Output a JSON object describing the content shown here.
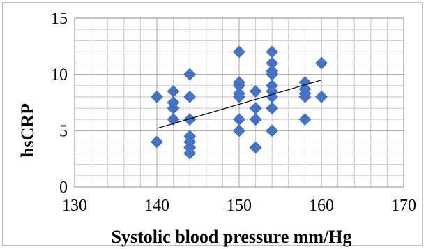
{
  "chart_data": {
    "type": "scatter",
    "title": "",
    "xlabel": "Systolic blood pressure mm/Hg",
    "ylabel": "hsCRP",
    "xlim": [
      130,
      170
    ],
    "ylim": [
      0,
      15
    ],
    "x_ticks": [
      130,
      140,
      150,
      160,
      170
    ],
    "y_ticks": [
      0,
      5,
      10,
      15
    ],
    "grid": true,
    "legend": "none",
    "marker": "diamond",
    "marker_color": "#4472C4",
    "trendline": {
      "type": "linear",
      "x": [
        140,
        160
      ],
      "y": [
        5.2,
        9.5
      ],
      "color": "#000000"
    },
    "series": [
      {
        "points": [
          [
            140,
            8
          ],
          [
            140,
            4
          ],
          [
            142,
            8.5
          ],
          [
            142,
            7.5
          ],
          [
            142,
            7
          ],
          [
            142,
            6
          ],
          [
            144,
            10
          ],
          [
            144,
            8
          ],
          [
            144,
            6
          ],
          [
            144,
            4.5
          ],
          [
            144,
            4
          ],
          [
            144,
            3.5
          ],
          [
            144,
            3
          ],
          [
            150,
            12
          ],
          [
            150,
            9.3
          ],
          [
            150,
            9
          ],
          [
            150,
            8.3
          ],
          [
            150,
            8
          ],
          [
            150,
            6
          ],
          [
            150,
            5
          ],
          [
            152,
            8.5
          ],
          [
            152,
            7
          ],
          [
            152,
            6
          ],
          [
            152,
            3.5
          ],
          [
            154,
            12
          ],
          [
            154,
            11
          ],
          [
            154,
            10.3
          ],
          [
            154,
            10
          ],
          [
            154,
            9
          ],
          [
            154,
            8.5
          ],
          [
            154,
            8
          ],
          [
            154,
            7
          ],
          [
            154,
            5
          ],
          [
            158,
            9.3
          ],
          [
            158,
            8.7
          ],
          [
            158,
            8.3
          ],
          [
            158,
            8
          ],
          [
            158,
            6
          ],
          [
            160,
            11
          ],
          [
            160,
            8
          ]
        ]
      }
    ]
  }
}
